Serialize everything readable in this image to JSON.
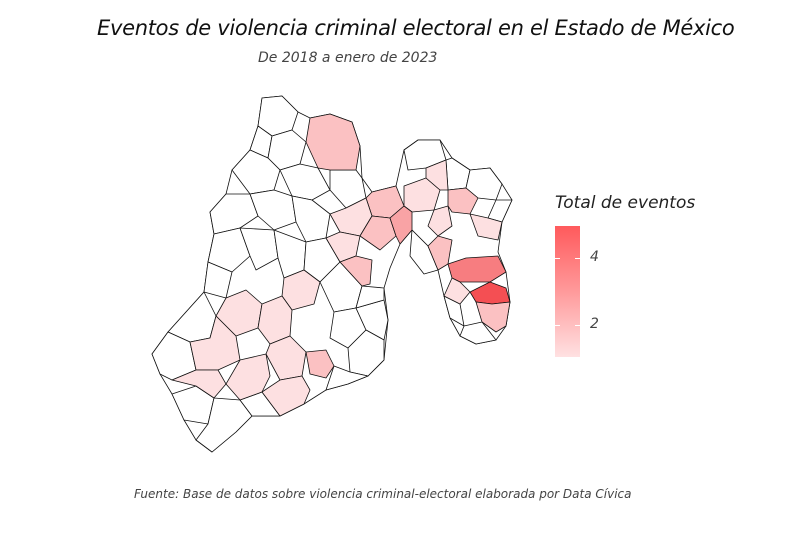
{
  "title": "Eventos de violencia criminal electoral en el Estado de México",
  "subtitle": "De 2018 a enero de 2023",
  "caption": "Fuente: Base de datos sobre violencia criminal-electoral elaborada por Data Cívica",
  "legend": {
    "title": "Total de eventos",
    "ticks": [
      "4",
      "2"
    ],
    "colors": {
      "low": "#ffe1e2",
      "high": "#ff5a5c"
    }
  },
  "map": {
    "region": "Estado de México",
    "fill_colors": {
      "c0": "#ffffff",
      "c1": "#fde0e1",
      "c2": "#fbc1c2",
      "c3": "#f9a3a5",
      "c4": "#f77d80",
      "c5": "#f44f53"
    }
  }
}
